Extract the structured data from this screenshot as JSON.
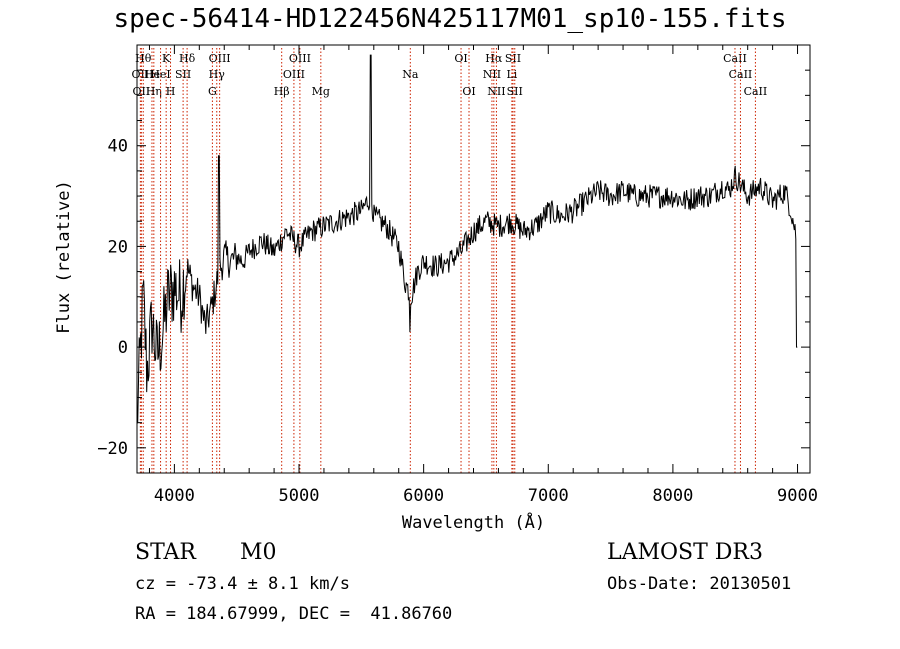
{
  "title": "spec-56414-HD122456N425117M01_sp10-155.fits",
  "footer": {
    "class_label": "STAR",
    "subclass": "M0",
    "survey": "LAMOST DR3",
    "cz": "cz = -73.4 ± 8.1 km/s",
    "obs_date": "Obs-Date: 20130501",
    "coords": "RA = 184.67999, DEC =  41.86760"
  },
  "chart_data": {
    "type": "line",
    "title": "spec-56414-HD122456N425117M01_sp10-155.fits",
    "xlabel": "Wavelength (Å)",
    "ylabel": "Flux (relative)",
    "xlim": [
      3700,
      9100
    ],
    "ylim": [
      -25,
      60
    ],
    "xticks": [
      4000,
      5000,
      6000,
      7000,
      8000,
      9000
    ],
    "yticks": [
      -20,
      0,
      20,
      40
    ],
    "grid": false,
    "line_color": "#000000",
    "marker_color": "#cc2200",
    "series": [
      {
        "x": [
          3700,
          3750,
          3780,
          3820,
          3860,
          3900,
          3950,
          4000,
          4050,
          4100,
          4150,
          4200,
          4250,
          4300,
          4350,
          4400,
          4450,
          4500,
          4550,
          4600,
          4700,
          4800,
          4900,
          5000,
          5100,
          5200,
          5300,
          5400,
          5500,
          5550,
          5580,
          5600,
          5700,
          5800,
          5850,
          5900,
          5950,
          6000,
          6100,
          6200,
          6300,
          6400,
          6500,
          6600,
          6700,
          6800,
          6900,
          7000,
          7100,
          7200,
          7300,
          7400,
          7500,
          7600,
          7700,
          7800,
          7900,
          8000,
          8100,
          8200,
          8300,
          8400,
          8450,
          8500,
          8550,
          8600,
          8700,
          8800,
          8900,
          8950,
          8990,
          9000
        ],
        "y": [
          -15,
          10,
          -5,
          5,
          -2,
          2,
          10,
          12,
          10,
          16,
          12,
          10,
          4,
          8,
          14,
          18,
          17,
          18,
          17,
          19,
          21,
          19,
          23,
          20,
          23,
          24,
          25,
          26,
          27,
          29,
          30,
          26,
          24,
          20,
          13,
          10,
          15,
          17,
          16,
          17,
          19,
          23,
          25,
          24,
          25,
          23,
          24,
          27,
          26,
          27,
          29,
          31,
          30,
          31,
          30,
          30,
          30,
          30,
          29,
          30,
          30,
          32,
          31,
          34,
          32,
          30,
          32,
          29,
          31,
          27,
          22,
          0
        ]
      }
    ],
    "line_markers": [
      {
        "label": "OII",
        "x": 3727,
        "row": 2
      },
      {
        "label": "Hθ",
        "x": 3750,
        "row": 1
      },
      {
        "label": "OII",
        "x": 3735,
        "row": 3
      },
      {
        "label": "He",
        "x": 3820,
        "row": 2
      },
      {
        "label": "Hη",
        "x": 3835,
        "row": 3
      },
      {
        "label": "K",
        "x": 3934,
        "row": 1
      },
      {
        "label": "H",
        "x": 3969,
        "row": 3
      },
      {
        "label": "HeI",
        "x": 3889,
        "row": 2
      },
      {
        "label": "SII",
        "x": 4070,
        "row": 2
      },
      {
        "label": "Hδ",
        "x": 4102,
        "row": 1
      },
      {
        "label": "OIII",
        "x": 4363,
        "row": 1
      },
      {
        "label": "Hγ",
        "x": 4340,
        "row": 2
      },
      {
        "label": "G",
        "x": 4305,
        "row": 3
      },
      {
        "label": "Hβ",
        "x": 4861,
        "row": 3
      },
      {
        "label": "OIII",
        "x": 5007,
        "row": 1
      },
      {
        "label": "OIII",
        "x": 4959,
        "row": 2
      },
      {
        "label": "Mg",
        "x": 5175,
        "row": 3
      },
      {
        "label": "Na",
        "x": 5893,
        "row": 2
      },
      {
        "label": "OI",
        "x": 6300,
        "row": 1
      },
      {
        "label": "OI",
        "x": 6364,
        "row": 3
      },
      {
        "label": "Hα",
        "x": 6563,
        "row": 1
      },
      {
        "label": "NII",
        "x": 6548,
        "row": 2
      },
      {
        "label": "NII",
        "x": 6584,
        "row": 3
      },
      {
        "label": "SII",
        "x": 6717,
        "row": 1
      },
      {
        "label": "Li",
        "x": 6708,
        "row": 2
      },
      {
        "label": "SII",
        "x": 6731,
        "row": 3
      },
      {
        "label": "CaII",
        "x": 8498,
        "row": 1
      },
      {
        "label": "CaII",
        "x": 8542,
        "row": 2
      },
      {
        "label": "CaII",
        "x": 8662,
        "row": 3
      }
    ]
  }
}
